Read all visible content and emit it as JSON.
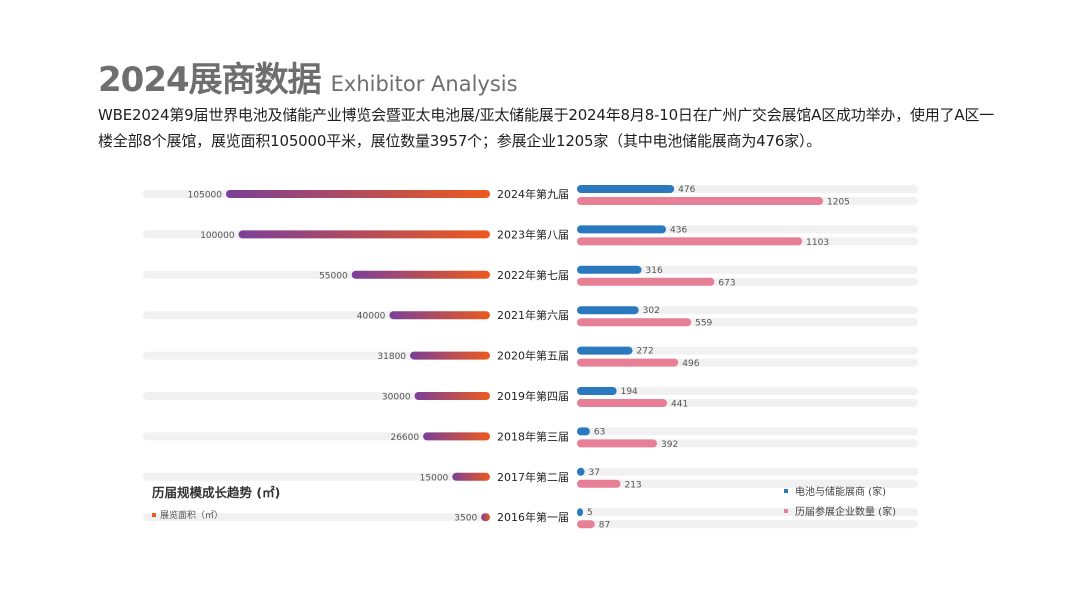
{
  "header": {
    "title_cn": "2024展商数据",
    "title_en": "Exhibitor Analysis",
    "description": "WBE2024第9届世界电池及储能产业博览会暨亚太电池展/亚太储能展于2024年8月8-10日在广州广交会展馆A区成功举办，使用了A区一楼全部8个展馆，展览面积105000平米，展位数量3957个；参展企业1205家（其中电池储能展商为476家）。"
  },
  "colors": {
    "area_start": "#7b3f99",
    "area_end": "#ec5a1d",
    "battery_exhibitors": "#2a78bd",
    "total_exhibitors": "#e77f96",
    "track": "#f1f1f1"
  },
  "chart_data": [
    {
      "type": "bar",
      "orientation": "horizontal",
      "title": "历届规模成长趋势 (㎡)",
      "categories": [
        "2024年第九届",
        "2023年第八届",
        "2022年第七届",
        "2021年第六届",
        "2020年第五届",
        "2019年第四届",
        "2018年第三届",
        "2017年第二届",
        "2016年第一届"
      ],
      "series": [
        {
          "name": "展览面积（㎡）",
          "values": [
            105000,
            100000,
            55000,
            40000,
            31800,
            30000,
            26600,
            15000,
            3500
          ]
        }
      ],
      "xlim": [
        0,
        105000
      ],
      "direction": "right-to-left",
      "legend_position": "bottom-left"
    },
    {
      "type": "bar",
      "orientation": "horizontal",
      "categories": [
        "2024年第九届",
        "2023年第八届",
        "2022年第七届",
        "2021年第六届",
        "2020年第五届",
        "2019年第四届",
        "2018年第三届",
        "2017年第二届",
        "2016年第一届"
      ],
      "series": [
        {
          "name": "电池与储能展商 (家)",
          "values": [
            476,
            436,
            316,
            302,
            272,
            194,
            63,
            37,
            5
          ]
        },
        {
          "name": "历届参展企业数量 (家)",
          "values": [
            1205,
            1103,
            673,
            559,
            496,
            441,
            392,
            213,
            87
          ]
        }
      ],
      "xlim": [
        0,
        1205
      ],
      "legend_position": "bottom-right"
    }
  ]
}
